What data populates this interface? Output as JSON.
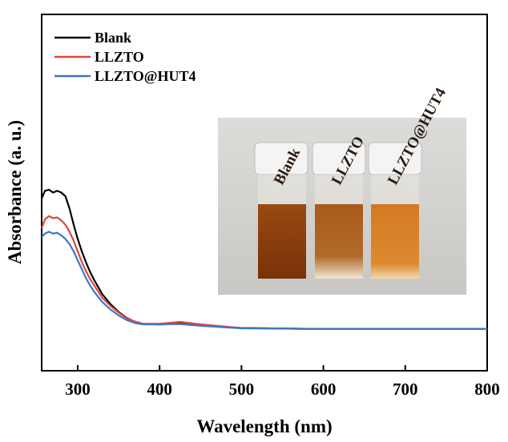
{
  "chart_data": {
    "type": "line",
    "xlabel": "Wavelength (nm)",
    "ylabel": "Absorbance (a. u.)",
    "x": [
      256,
      260,
      265,
      270,
      275,
      280,
      285,
      290,
      295,
      300,
      305,
      310,
      315,
      320,
      330,
      340,
      350,
      360,
      370,
      380,
      400,
      425,
      450,
      500,
      600,
      700,
      800
    ],
    "series": [
      {
        "name": "Blank",
        "color": "#000000",
        "values": [
          0.483,
          0.505,
          0.508,
          0.5,
          0.505,
          0.5,
          0.49,
          0.455,
          0.41,
          0.37,
          0.335,
          0.305,
          0.278,
          0.255,
          0.215,
          0.187,
          0.165,
          0.148,
          0.137,
          0.131,
          0.13,
          0.133,
          0.127,
          0.12,
          0.117,
          0.117,
          0.117
        ]
      },
      {
        "name": "LLZTO",
        "color": "#e0453a",
        "values": [
          0.4,
          0.425,
          0.434,
          0.428,
          0.43,
          0.422,
          0.41,
          0.39,
          0.365,
          0.335,
          0.305,
          0.28,
          0.258,
          0.24,
          0.205,
          0.182,
          0.163,
          0.147,
          0.138,
          0.132,
          0.132,
          0.137,
          0.13,
          0.12,
          0.117,
          0.117,
          0.117
        ]
      },
      {
        "name": "LLZTO@HUT4",
        "color": "#3a78c8",
        "values": [
          0.375,
          0.385,
          0.39,
          0.385,
          0.387,
          0.38,
          0.37,
          0.355,
          0.335,
          0.31,
          0.285,
          0.26,
          0.24,
          0.222,
          0.193,
          0.172,
          0.155,
          0.142,
          0.134,
          0.13,
          0.13,
          0.131,
          0.126,
          0.119,
          0.117,
          0.117,
          0.117
        ]
      }
    ],
    "xlim": [
      256,
      800
    ],
    "xticks": [
      300,
      400,
      500,
      600,
      700,
      800
    ],
    "ylim": [
      0,
      1
    ],
    "legend": "upper left",
    "inset_labels": [
      "Blank",
      "LLZTO",
      "LLZTO@HUT4"
    ]
  }
}
